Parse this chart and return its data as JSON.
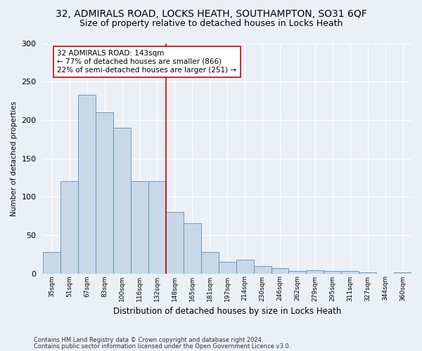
{
  "title1": "32, ADMIRALS ROAD, LOCKS HEATH, SOUTHAMPTON, SO31 6QF",
  "title2": "Size of property relative to detached houses in Locks Heath",
  "xlabel": "Distribution of detached houses by size in Locks Heath",
  "ylabel": "Number of detached properties",
  "footnote1": "Contains HM Land Registry data © Crown copyright and database right 2024.",
  "footnote2": "Contains public sector information licensed under the Open Government Licence v3.0.",
  "bar_values": [
    28,
    120,
    233,
    210,
    190,
    120,
    120,
    80,
    65,
    28,
    15,
    18,
    10,
    7,
    3,
    4,
    3,
    3,
    1,
    0,
    1
  ],
  "x_labels": [
    "35sqm",
    "51sqm",
    "67sqm",
    "83sqm",
    "100sqm",
    "116sqm",
    "132sqm",
    "148sqm",
    "165sqm",
    "181sqm",
    "197sqm",
    "214sqm",
    "230sqm",
    "246sqm",
    "262sqm",
    "279sqm",
    "295sqm",
    "311sqm",
    "327sqm",
    "344sqm",
    "360sqm"
  ],
  "bar_color": "#c8d8e8",
  "bar_edge_color": "#5b8db8",
  "vline_color": "#cc0000",
  "annotation_text": "32 ADMIRALS ROAD: 143sqm\n← 77% of detached houses are smaller (866)\n22% of semi-detached houses are larger (251) →",
  "annotation_box_color": "#ffffff",
  "annotation_box_edge": "#cc0000",
  "ylim": [
    0,
    300
  ],
  "yticks": [
    0,
    50,
    100,
    150,
    200,
    250,
    300
  ],
  "bg_color": "#eaf0f6",
  "grid_color": "#ffffff",
  "title_fontsize": 10,
  "subtitle_fontsize": 9
}
